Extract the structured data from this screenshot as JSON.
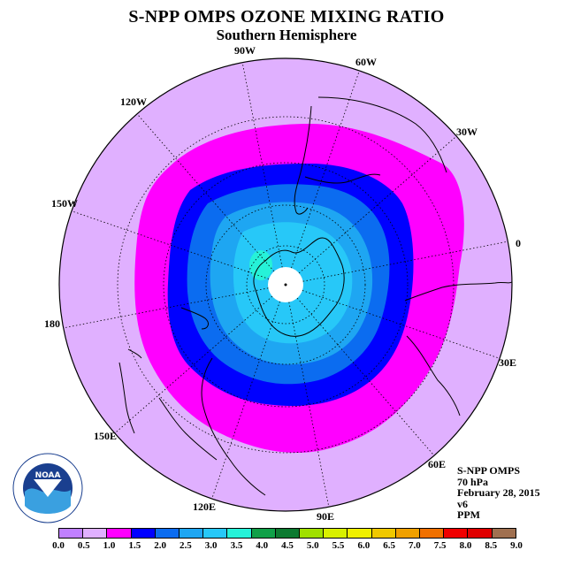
{
  "header": {
    "title": "S-NPP OMPS OZONE MIXING RATIO",
    "subtitle": "Southern Hemisphere"
  },
  "map": {
    "projection": "south polar stereographic",
    "longitude_labels": [
      "90W",
      "60W",
      "30W",
      "0",
      "30E",
      "60E",
      "90E",
      "120E",
      "150E",
      "180",
      "150W",
      "120W"
    ],
    "colors": {
      "background": "#e0b0ff",
      "ring_magenta": "#ff00ff",
      "ring_blue": "#0000ff",
      "ring_mid_blue": "#0b6cf0",
      "ring_light_blue": "#1ea6f2",
      "ring_sky": "#27c8f8",
      "ring_cyan_spot": "#26f2d8",
      "pole_cap": "#ffffff"
    }
  },
  "info": {
    "instrument": "S-NPP OMPS",
    "pressure": "70 hPa",
    "date": "February 28, 2015",
    "version": "v6",
    "units": "PPM"
  },
  "colorbar": {
    "ticks": [
      "0.0",
      "0.5",
      "1.0",
      "1.5",
      "2.0",
      "2.5",
      "3.0",
      "3.5",
      "4.0",
      "4.5",
      "5.0",
      "5.5",
      "6.0",
      "6.5",
      "7.0",
      "7.5",
      "8.0",
      "8.5",
      "9.0"
    ],
    "colors": [
      "#c080ff",
      "#e0b0ff",
      "#ff00ff",
      "#0000ff",
      "#0b6cf0",
      "#1ea6f2",
      "#27c8f8",
      "#26f2d8",
      "#10a048",
      "#0c7a30",
      "#a0e000",
      "#d8f000",
      "#f0f000",
      "#f0c800",
      "#f0a000",
      "#f07000",
      "#f00000",
      "#e00000",
      "#a07050"
    ]
  },
  "logo": {
    "text": "NOAA",
    "ring_text": "NATIONAL OCEANIC AND ATMOSPHERIC ADMINISTRATION · U.S. DEPARTMENT OF COMMERCE"
  }
}
